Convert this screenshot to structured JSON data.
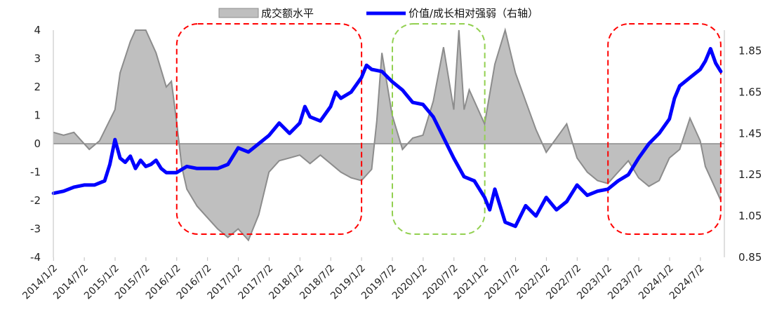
{
  "chart_data": {
    "type": "area+line",
    "legend": {
      "placement": "top-center",
      "entries": [
        "成交额水平",
        "价值/成长相对强弱（右轴）"
      ]
    },
    "x_tick_labels": [
      "2014/1/2",
      "2014/7/2",
      "2015/1/2",
      "2015/7/2",
      "2016/1/2",
      "2016/7/2",
      "2017/1/2",
      "2017/7/2",
      "2018/1/2",
      "2018/7/2",
      "2019/1/2",
      "2019/7/2",
      "2020/1/2",
      "2020/7/2",
      "2021/1/2",
      "2021/7/2",
      "2022/1/2",
      "2022/7/2",
      "2023/1/2",
      "2023/7/2",
      "2024/1/2",
      "2024/7/2"
    ],
    "left_axis": {
      "ylim": [
        -4,
        4
      ],
      "ticks": [
        "4",
        "3",
        "2",
        "1",
        "0",
        "-1",
        "-2",
        "-3",
        "-4"
      ]
    },
    "right_axis": {
      "ylim": [
        0.85,
        1.95
      ],
      "ticks": [
        "1.85",
        "1.65",
        "1.45",
        "1.25",
        "1.05",
        "0.85"
      ]
    },
    "series": [
      {
        "name": "成交额水平",
        "type": "area",
        "axis": "left",
        "fill": "#bfbfbf",
        "stroke": "#8c8c8c",
        "x": [
          "2014/1/2",
          "2014/3",
          "2014/5",
          "2014/6",
          "2014/8",
          "2014/10",
          "2015/1",
          "2015/2",
          "2015/4",
          "2015/5",
          "2015/6",
          "2015/7",
          "2015/9",
          "2015/11",
          "2015/12",
          "2016/1",
          "2016/2",
          "2016/3",
          "2016/5",
          "2016/7",
          "2016/9",
          "2016/11",
          "2017/1",
          "2017/3",
          "2017/5",
          "2017/7",
          "2017/9",
          "2017/11",
          "2018/1",
          "2018/3",
          "2018/5",
          "2018/7",
          "2018/9",
          "2018/11",
          "2019/1",
          "2019/3",
          "2019/4",
          "2019/5",
          "2019/7",
          "2019/9",
          "2019/11",
          "2020/1",
          "2020/3",
          "2020/5",
          "2020/7",
          "2020/8",
          "2020/9",
          "2020/10",
          "2021/1",
          "2021/3",
          "2021/5",
          "2021/7",
          "2021/9",
          "2021/11",
          "2022/1",
          "2022/3",
          "2022/5",
          "2022/7",
          "2022/9",
          "2022/11",
          "2023/1",
          "2023/3",
          "2023/5",
          "2023/7",
          "2023/9",
          "2023/11",
          "2024/1",
          "2024/3",
          "2024/5",
          "2024/7",
          "2024/8",
          "2024/10",
          "2024/11"
        ],
        "values": [
          0.4,
          0.3,
          0.4,
          0.2,
          -0.2,
          0.1,
          1.2,
          2.5,
          3.6,
          4.0,
          4.0,
          4.0,
          3.2,
          2.0,
          2.2,
          0.8,
          -0.8,
          -1.6,
          -2.2,
          -2.6,
          -3.0,
          -3.3,
          -3.0,
          -3.4,
          -2.5,
          -1.0,
          -0.6,
          -0.5,
          -0.4,
          -0.7,
          -0.4,
          -0.7,
          -1.0,
          -1.2,
          -1.3,
          -0.9,
          0.8,
          3.2,
          1.0,
          -0.2,
          0.2,
          0.3,
          1.5,
          3.4,
          1.2,
          4.0,
          1.2,
          1.9,
          0.7,
          2.8,
          4.0,
          2.5,
          1.5,
          0.5,
          -0.3,
          0.2,
          0.7,
          -0.5,
          -1.0,
          -1.3,
          -1.4,
          -1.0,
          -0.6,
          -1.2,
          -1.5,
          -1.3,
          -0.5,
          -0.2,
          0.9,
          0.1,
          -0.8,
          -1.6,
          -2.0
        ]
      },
      {
        "name": "价值/成长相对强弱（右轴）",
        "type": "line",
        "axis": "right",
        "color": "#0000ff",
        "x": [
          "2014/1/2",
          "2014/3",
          "2014/5",
          "2014/7",
          "2014/9",
          "2014/11",
          "2014/12",
          "2015/1",
          "2015/2",
          "2015/3",
          "2015/4",
          "2015/5",
          "2015/6",
          "2015/7",
          "2015/8",
          "2015/9",
          "2015/10",
          "2015/11",
          "2016/1",
          "2016/3",
          "2016/5",
          "2016/7",
          "2016/9",
          "2016/11",
          "2017/1",
          "2017/3",
          "2017/5",
          "2017/7",
          "2017/9",
          "2017/11",
          "2018/1",
          "2018/2",
          "2018/3",
          "2018/5",
          "2018/7",
          "2018/8",
          "2018/9",
          "2018/11",
          "2019/1",
          "2019/2",
          "2019/3",
          "2019/5",
          "2019/7",
          "2019/9",
          "2019/11",
          "2020/1",
          "2020/3",
          "2020/5",
          "2020/7",
          "2020/9",
          "2020/11",
          "2021/1",
          "2021/2",
          "2021/3",
          "2021/5",
          "2021/7",
          "2021/9",
          "2021/11",
          "2022/1",
          "2022/3",
          "2022/5",
          "2022/7",
          "2022/9",
          "2022/11",
          "2023/1",
          "2023/3",
          "2023/5",
          "2023/7",
          "2023/9",
          "2023/11",
          "2024/1",
          "2024/2",
          "2024/3",
          "2024/5",
          "2024/7",
          "2024/8",
          "2024/9",
          "2024/10",
          "2024/11"
        ],
        "values": [
          1.16,
          1.17,
          1.19,
          1.2,
          1.2,
          1.22,
          1.3,
          1.42,
          1.33,
          1.31,
          1.34,
          1.28,
          1.32,
          1.29,
          1.3,
          1.32,
          1.28,
          1.26,
          1.26,
          1.29,
          1.28,
          1.28,
          1.28,
          1.3,
          1.38,
          1.36,
          1.4,
          1.44,
          1.5,
          1.45,
          1.5,
          1.58,
          1.53,
          1.51,
          1.58,
          1.65,
          1.62,
          1.65,
          1.72,
          1.78,
          1.76,
          1.75,
          1.7,
          1.66,
          1.6,
          1.59,
          1.53,
          1.43,
          1.33,
          1.24,
          1.22,
          1.14,
          1.08,
          1.18,
          1.02,
          1.0,
          1.1,
          1.05,
          1.14,
          1.08,
          1.12,
          1.2,
          1.15,
          1.17,
          1.18,
          1.22,
          1.25,
          1.33,
          1.4,
          1.45,
          1.52,
          1.62,
          1.68,
          1.72,
          1.76,
          1.8,
          1.86,
          1.79,
          1.75
        ]
      }
    ],
    "highlight_boxes": [
      {
        "from": "2016/1/2",
        "to": "2019/1/2",
        "color": "#ff0000",
        "style": "dashed"
      },
      {
        "from": "2019/7/2",
        "to": "2021/1/2",
        "color": "#92d050",
        "style": "dashed"
      },
      {
        "from": "2023/1/2",
        "to": "2024/11",
        "color": "#ff0000",
        "style": "dashed"
      }
    ]
  }
}
